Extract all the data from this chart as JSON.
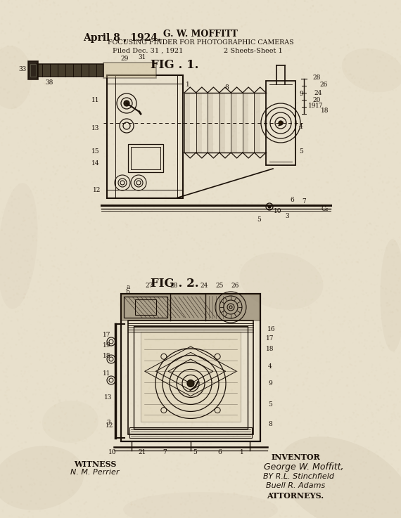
{
  "bg_color": "#e8e0cc",
  "ink_color": "#1a1008",
  "title_date": "April 8 , 1924.",
  "inventor_name": "G. W. MOFFITT",
  "patent_title": "FOCUSING FINDER FOR PHOTOGRAPHIC CAMERAS",
  "filed_text": "Filed Dec. 31 , 1921",
  "sheets_text": "2 Sheets-Sheet 1",
  "fig1_label": "FIG . 1.",
  "fig2_label": "FIG . 2.",
  "witness_label": "WITNESS",
  "witness_sig": "N. M. Perrier",
  "inventor_label": "INVENTOR",
  "inventor_sig": "George W. Moffitt,",
  "by_sig": "BY R.L. Stinchfield",
  "attorney_sig": "Buell R. Adams",
  "attorneys_label": "ATTORNEYS.",
  "fig_width": 5.7,
  "fig_height": 7.37,
  "dpi": 100
}
